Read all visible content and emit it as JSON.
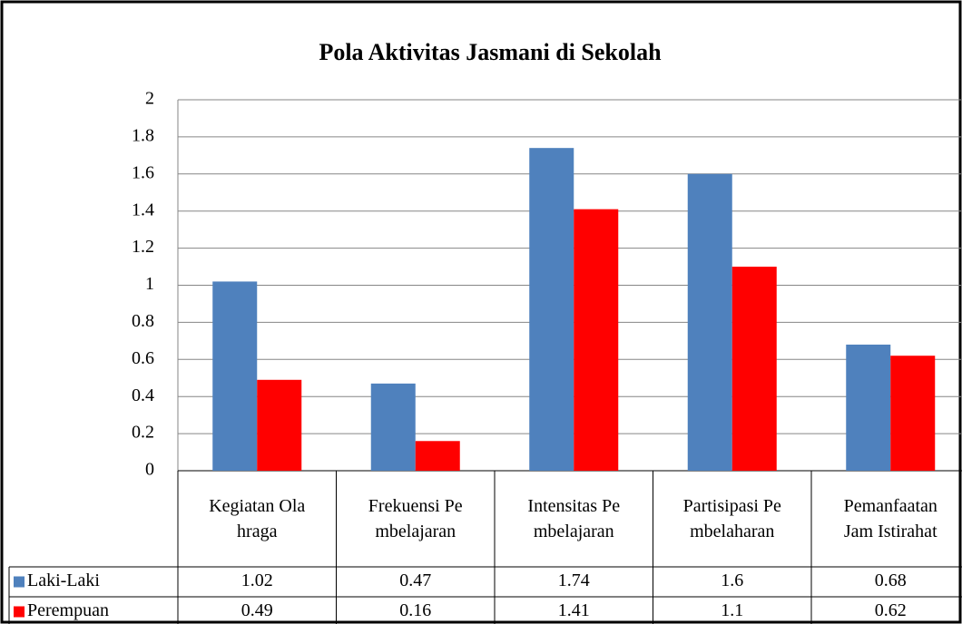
{
  "chart_data": {
    "type": "bar",
    "title": "Pola Aktivitas Jasmani di Sekolah",
    "categories": [
      "Kegiatan Olahraga",
      "Frekuensi Pembelajaran",
      "Intensitas Pembelajaran",
      "Partisipasi Pembelaharan",
      "Pemanfaatan Jam Istirahat"
    ],
    "series": [
      {
        "name": "Laki-Laki",
        "color": "#4f81bd",
        "values": [
          1.02,
          0.47,
          1.74,
          1.6,
          0.68
        ]
      },
      {
        "name": "Perempuan",
        "color": "#ff0000",
        "values": [
          0.49,
          0.16,
          1.41,
          1.1,
          0.62
        ]
      }
    ],
    "ylim": [
      0,
      2
    ],
    "yticks": [
      0,
      0.2,
      0.4,
      0.6,
      0.8,
      1,
      1.2,
      1.4,
      1.6,
      1.8,
      2
    ],
    "grid": true,
    "data_table": true
  }
}
